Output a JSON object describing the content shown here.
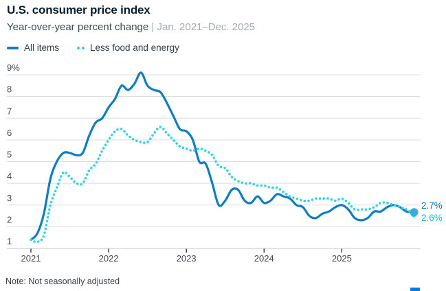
{
  "header": {
    "title": "U.S. consumer price index",
    "subtitle": "Year-over-year percent change",
    "subtitle_separator": "|",
    "subtitle_range": "Jan. 2021–Dec. 2025"
  },
  "legend": {
    "items": [
      {
        "label": "All items"
      },
      {
        "label": "Less food and energy"
      }
    ]
  },
  "note": "Note: Not seasonally adjusted",
  "logo_color": "#0b79e2",
  "chart_data": {
    "type": "line",
    "title": "U.S. consumer price index",
    "xlabel": "",
    "ylabel": "",
    "ylim": [
      1,
      9
    ],
    "grid": "horizontal",
    "legend_position": "top-left",
    "months": [
      "2021-01",
      "2021-02",
      "2021-03",
      "2021-04",
      "2021-05",
      "2021-06",
      "2021-07",
      "2021-08",
      "2021-09",
      "2021-10",
      "2021-11",
      "2021-12",
      "2022-01",
      "2022-02",
      "2022-03",
      "2022-04",
      "2022-05",
      "2022-06",
      "2022-07",
      "2022-08",
      "2022-09",
      "2022-10",
      "2022-11",
      "2022-12",
      "2023-01",
      "2023-02",
      "2023-03",
      "2023-04",
      "2023-05",
      "2023-06",
      "2023-07",
      "2023-08",
      "2023-09",
      "2023-10",
      "2023-11",
      "2023-12",
      "2024-01",
      "2024-02",
      "2024-03",
      "2024-04",
      "2024-05",
      "2024-06",
      "2024-07",
      "2024-08",
      "2024-09",
      "2024-10",
      "2024-11",
      "2024-12",
      "2025-01",
      "2025-02",
      "2025-03",
      "2025-04",
      "2025-05",
      "2025-06",
      "2025-07",
      "2025-08",
      "2025-09",
      "2025-10",
      "2025-11",
      "2025-12"
    ],
    "series": [
      {
        "name": "All items",
        "style": "solid",
        "color": "#0e7dc2",
        "values": [
          1.4,
          1.7,
          2.6,
          4.2,
          5.0,
          5.4,
          5.4,
          5.3,
          5.4,
          6.2,
          6.8,
          7.0,
          7.5,
          7.9,
          8.5,
          8.3,
          8.6,
          9.1,
          8.5,
          8.3,
          8.2,
          7.7,
          7.1,
          6.5,
          6.4,
          6.0,
          5.0,
          4.9,
          4.0,
          3.0,
          3.2,
          3.7,
          3.7,
          3.2,
          3.1,
          3.4,
          3.1,
          3.2,
          3.5,
          3.4,
          3.3,
          3.0,
          2.9,
          2.5,
          2.4,
          2.6,
          2.7,
          2.9,
          3.0,
          2.8,
          2.4,
          2.3,
          2.4,
          2.7,
          2.7,
          2.9,
          3.0,
          2.9,
          2.7,
          2.7
        ]
      },
      {
        "name": "Less food and energy",
        "style": "dotted",
        "color": "#2fd3e3",
        "values": [
          1.4,
          1.3,
          1.6,
          3.0,
          3.8,
          4.5,
          4.3,
          4.0,
          4.0,
          4.6,
          4.9,
          5.5,
          6.0,
          6.4,
          6.5,
          6.2,
          6.0,
          5.9,
          5.9,
          6.3,
          6.6,
          6.3,
          6.0,
          5.7,
          5.6,
          5.5,
          5.6,
          5.5,
          5.3,
          4.8,
          4.7,
          4.3,
          4.1,
          4.0,
          4.0,
          3.9,
          3.9,
          3.8,
          3.8,
          3.6,
          3.4,
          3.3,
          3.2,
          3.2,
          3.3,
          3.3,
          3.3,
          3.2,
          3.3,
          3.1,
          2.8,
          2.8,
          2.8,
          2.9,
          3.1,
          3.1,
          3.0,
          2.9,
          2.8,
          2.6
        ]
      }
    ],
    "y_ticks": {
      "values": [
        9,
        8,
        7,
        6,
        5,
        4,
        3,
        2,
        1
      ],
      "labels": [
        "9%",
        "8",
        "7",
        "6",
        "5",
        "4",
        "3",
        "2",
        "1"
      ]
    },
    "x_ticks": [
      {
        "label": "2021",
        "month_index": 0
      },
      {
        "label": "2022",
        "month_index": 12
      },
      {
        "label": "2023",
        "month_index": 24
      },
      {
        "label": "2024",
        "month_index": 36
      },
      {
        "label": "2025",
        "month_index": 48
      }
    ],
    "end_labels": [
      {
        "series": "All items",
        "text": "2.7%",
        "color": "#0a70b4"
      },
      {
        "series": "Less food and energy",
        "text": "2.6%",
        "color": "#16bccd"
      }
    ],
    "end_dot_color": "#3aabdf",
    "colors": {
      "gridline": "#dadde0",
      "axis_line": "#c0c6c9",
      "tick": "#2a3238",
      "axis_text": "#3d4a54"
    }
  }
}
